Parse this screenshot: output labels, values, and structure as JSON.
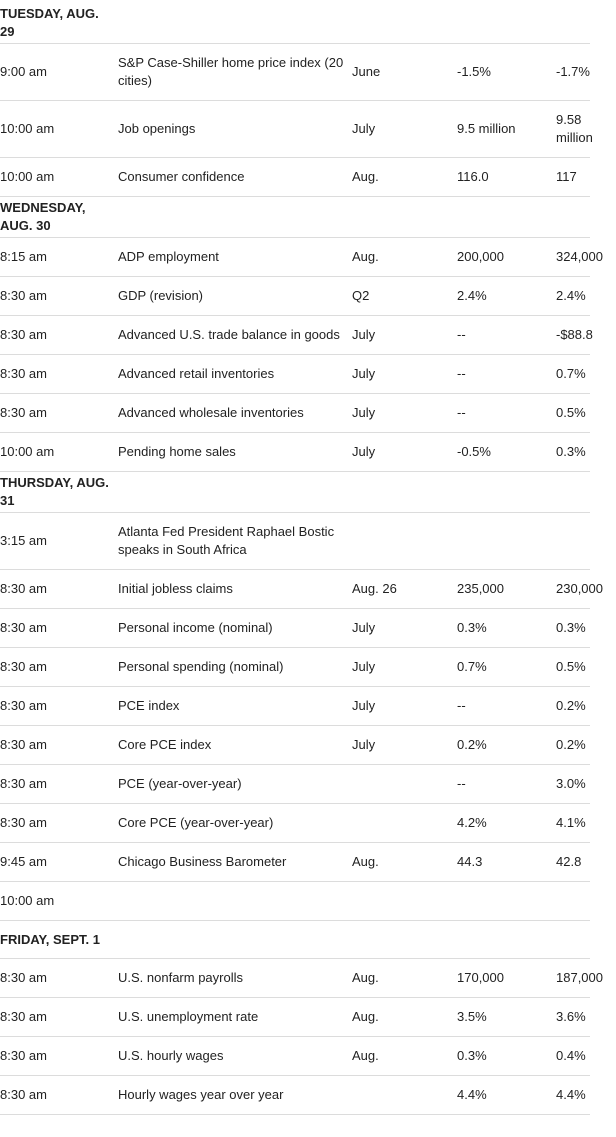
{
  "sections": [
    {
      "day": "TUESDAY, AUG. 29",
      "rows": [
        {
          "time": "9:00 am",
          "event": "S&P Case-Shiller home price index (20 cities)",
          "period": "June",
          "forecast": "-1.5%",
          "previous": "-1.7%"
        },
        {
          "time": "10:00 am",
          "event": "Job openings",
          "period": "July",
          "forecast": "9.5 million",
          "previous": "9.58 million"
        },
        {
          "time": "10:00 am",
          "event": "Consumer confidence",
          "period": "Aug.",
          "forecast": "116.0",
          "previous": "117"
        }
      ]
    },
    {
      "day": "WEDNESDAY, AUG. 30",
      "rows": [
        {
          "time": "8:15 am",
          "event": "ADP employment",
          "period": "Aug.",
          "forecast": "200,000",
          "previous": "324,000"
        },
        {
          "time": "8:30 am",
          "event": "GDP (revision)",
          "period": "Q2",
          "forecast": "2.4%",
          "previous": "2.4%"
        },
        {
          "time": "8:30 am",
          "event": "Advanced U.S. trade balance in goods",
          "period": "July",
          "forecast": "--",
          "previous": "-$88.8"
        },
        {
          "time": "8:30 am",
          "event": "Advanced retail inventories",
          "period": "July",
          "forecast": "--",
          "previous": "0.7%"
        },
        {
          "time": "8:30 am",
          "event": "Advanced wholesale inventories",
          "period": "July",
          "forecast": "--",
          "previous": "0.5%"
        },
        {
          "time": "10:00 am",
          "event": "Pending home sales",
          "period": "July",
          "forecast": "-0.5%",
          "previous": "0.3%"
        }
      ]
    },
    {
      "day": "THURSDAY, AUG. 31",
      "rows": [
        {
          "time": "3:15 am",
          "event": "Atlanta Fed President Raphael Bostic speaks in South Africa"
        },
        {
          "time": "8:30 am",
          "event": "Initial jobless claims",
          "period": "Aug. 26",
          "forecast": "235,000",
          "previous": "230,000"
        },
        {
          "time": "8:30 am",
          "event": "Personal income (nominal)",
          "period": "July",
          "forecast": "0.3%",
          "previous": "0.3%"
        },
        {
          "time": "8:30 am",
          "event": "Personal spending (nominal)",
          "period": "July",
          "forecast": "0.7%",
          "previous": "0.5%"
        },
        {
          "time": "8:30 am",
          "event": "PCE index",
          "period": "July",
          "forecast": "--",
          "previous": "0.2%"
        },
        {
          "time": "8:30 am",
          "event": "Core PCE index",
          "period": "July",
          "forecast": "0.2%",
          "previous": "0.2%"
        },
        {
          "time": "8:30 am",
          "event": "PCE (year-over-year)",
          "forecast": "--",
          "previous": "3.0%"
        },
        {
          "time": "8:30 am",
          "event": "Core PCE (year-over-year)",
          "forecast": "4.2%",
          "previous": "4.1%"
        },
        {
          "time": "9:45 am",
          "event": "Chicago Business Barometer",
          "period": "Aug.",
          "forecast": "44.3",
          "previous": "42.8"
        },
        {
          "time": "10:00 am"
        }
      ]
    },
    {
      "day": "FRIDAY, SEPT. 1",
      "rows": [
        {
          "time": "8:30 am",
          "event": "U.S. nonfarm payrolls",
          "period": "Aug.",
          "forecast": "170,000",
          "previous": "187,000"
        },
        {
          "time": "8:30 am",
          "event": "U.S. unemployment rate",
          "period": "Aug.",
          "forecast": "3.5%",
          "previous": "3.6%"
        },
        {
          "time": "8:30 am",
          "event": "U.S. hourly wages",
          "period": "Aug.",
          "forecast": "0.3%",
          "previous": "0.4%"
        },
        {
          "time": "8:30 am",
          "event": "Hourly wages year over year",
          "forecast": "4.4%",
          "previous": "4.4%"
        }
      ]
    }
  ]
}
